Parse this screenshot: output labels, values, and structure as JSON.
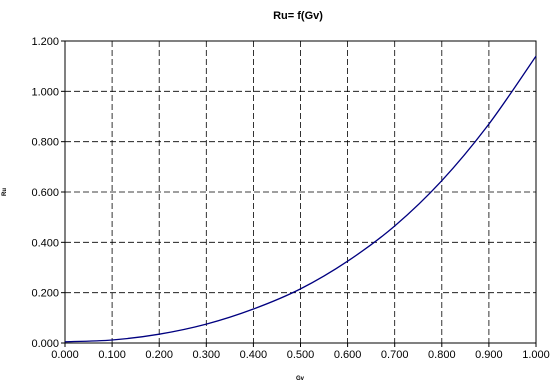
{
  "chart_data": {
    "type": "line",
    "title": "Ru= f(Gv)",
    "xlabel": "Gv",
    "ylabel": "Ru",
    "xlim": [
      0,
      1
    ],
    "ylim": [
      0,
      1.2
    ],
    "x_ticks": [
      "0.000",
      "0.100",
      "0.200",
      "0.300",
      "0.400",
      "0.500",
      "0.600",
      "0.700",
      "0.800",
      "0.900",
      "1.000"
    ],
    "y_ticks": [
      "0.000",
      "0.200",
      "0.400",
      "0.600",
      "0.800",
      "1.000",
      "1.200"
    ],
    "grid": true,
    "grid_style": "dashed",
    "legend": "none",
    "series": [
      {
        "color": "#000080",
        "x": [
          0.0,
          0.1,
          0.2,
          0.3,
          0.4,
          0.5,
          0.6,
          0.7,
          0.8,
          0.9,
          1.0
        ],
        "y": [
          0.005,
          0.012,
          0.035,
          0.075,
          0.135,
          0.215,
          0.325,
          0.465,
          0.645,
          0.87,
          1.14
        ]
      }
    ]
  }
}
